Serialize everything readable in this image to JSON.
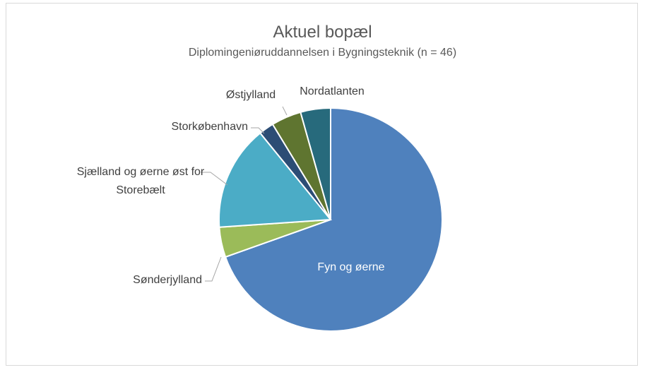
{
  "chart_data": {
    "type": "pie",
    "title": "Aktuel bopæl",
    "subtitle": "Diplomingeniøruddannelsen i Bygningsteknik (n = 46)",
    "categories": [
      "Fyn og øerne",
      "Sønderjylland",
      "Sjælland og øerne øst for Storebælt",
      "Storkøbenhavn",
      "Østjylland",
      "Nordatlanten"
    ],
    "values": [
      32,
      2,
      7,
      1,
      2,
      2
    ],
    "colors": [
      "#4f81bd",
      "#9bbb59",
      "#4bacc6",
      "#2c4d75",
      "#5f7530",
      "#276a7c"
    ]
  }
}
